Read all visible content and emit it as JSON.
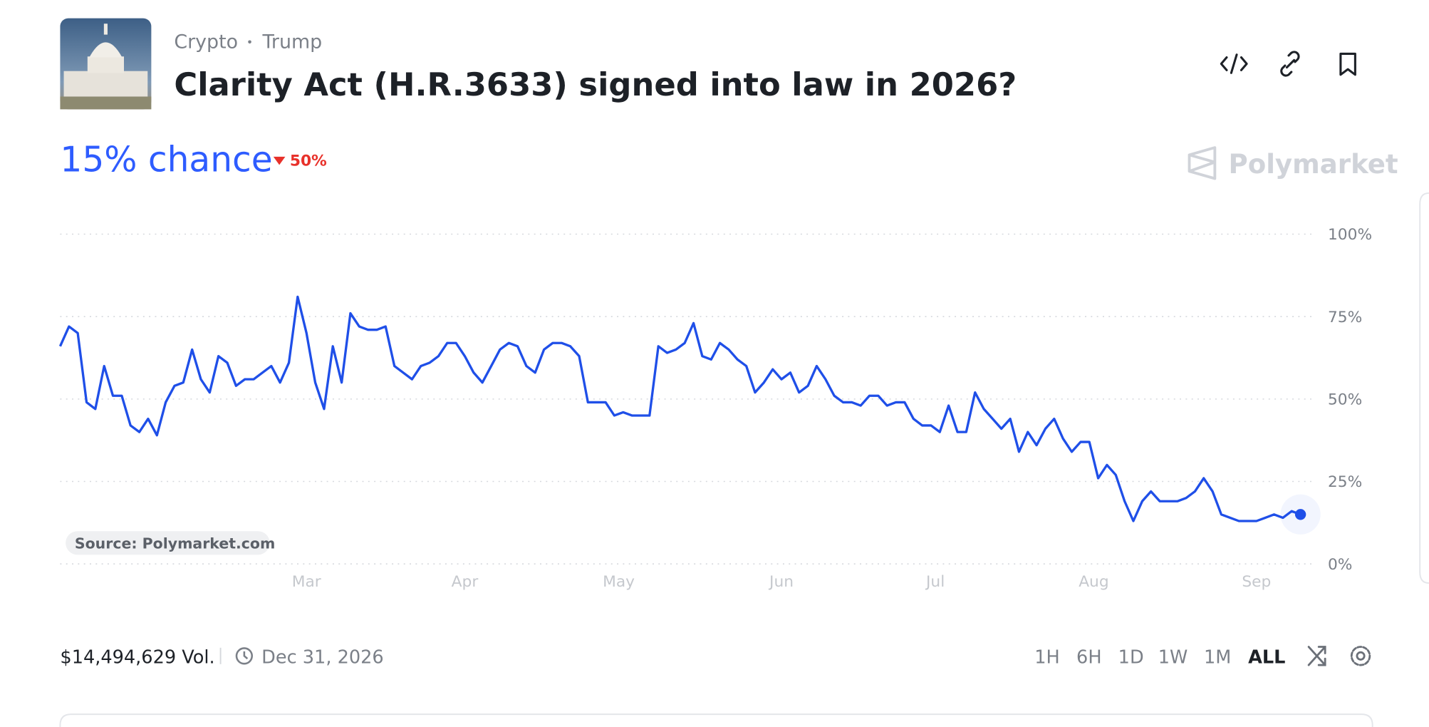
{
  "header": {
    "tags": [
      "Crypto",
      "Trump"
    ],
    "title": "Clarity Act (H.R.3633) signed into law in 2026?",
    "chance": "15% chance",
    "change": "50%",
    "brand": "Polymarket"
  },
  "chart_data": {
    "type": "line",
    "source": "Source: Polymarket.com",
    "xlim": [
      0,
      141
    ],
    "xticks": [
      {
        "value": 28,
        "label": "Mar"
      },
      {
        "value": 46,
        "label": "Apr"
      },
      {
        "value": 63.5,
        "label": "May"
      },
      {
        "value": 82,
        "label": "Jun"
      },
      {
        "value": 99.5,
        "label": "Jul"
      },
      {
        "value": 117.5,
        "label": "Aug"
      },
      {
        "value": 136,
        "label": "Sep"
      }
    ],
    "ylim": [
      0,
      100
    ],
    "yticks": [
      {
        "value": 0,
        "label": "0%"
      },
      {
        "value": 25,
        "label": "25%"
      },
      {
        "value": 50,
        "label": "50%"
      },
      {
        "value": 75,
        "label": "75%"
      },
      {
        "value": 100,
        "label": "100%"
      }
    ],
    "grid": true,
    "series": [
      {
        "color": "#1f4fe8",
        "values": [
          66,
          72,
          70,
          49,
          47,
          60,
          51,
          51,
          42,
          40,
          44,
          39,
          49,
          54,
          55,
          65,
          56,
          52,
          63,
          61,
          54,
          56,
          56,
          58,
          60,
          55,
          61,
          81,
          70,
          55,
          47,
          66,
          55,
          76,
          72,
          71,
          71,
          72,
          60,
          58,
          56,
          60,
          61,
          63,
          67,
          67,
          63,
          58,
          55,
          60,
          65,
          67,
          66,
          60,
          58,
          65,
          67,
          67,
          66,
          63,
          49,
          49,
          49,
          45,
          46,
          45,
          45,
          45,
          66,
          64,
          65,
          67,
          73,
          63,
          62,
          67,
          65,
          62,
          60,
          52,
          55,
          59,
          56,
          58,
          52,
          54,
          60,
          56,
          51,
          49,
          49,
          48,
          51,
          51,
          48,
          49,
          49,
          44,
          42,
          42,
          40,
          48,
          40,
          40,
          52,
          47,
          44,
          41,
          44,
          34,
          40,
          36,
          41,
          44,
          38,
          34,
          37,
          37,
          26,
          30,
          27,
          19,
          13,
          19,
          22,
          19,
          19,
          19,
          20,
          22,
          26,
          22,
          15,
          14,
          13,
          13,
          13,
          14,
          15,
          14,
          16,
          15
        ]
      }
    ]
  },
  "footer": {
    "volume": "$14,494,629 Vol.",
    "end_date": "Dec 31, 2026",
    "ranges": [
      "1H",
      "6H",
      "1D",
      "1W",
      "1M",
      "ALL"
    ]
  }
}
